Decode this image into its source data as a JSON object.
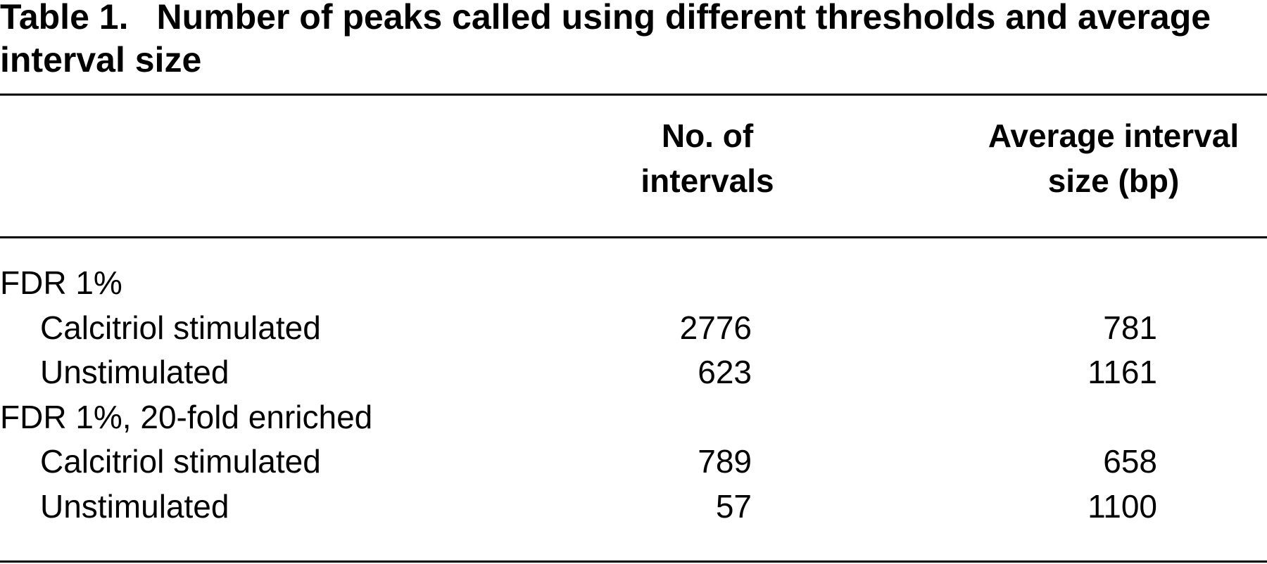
{
  "title": {
    "label": "Table 1.",
    "text": "Number of peaks called using different thresholds and average interval size"
  },
  "table": {
    "columns": [
      "No. of intervals",
      "Average interval size (bp)"
    ],
    "groups": [
      {
        "label": "FDR 1%",
        "rows": [
          {
            "label": "Calcitriol stimulated",
            "values": [
              2776,
              781
            ]
          },
          {
            "label": "Unstimulated",
            "values": [
              623,
              1161
            ]
          }
        ]
      },
      {
        "label": "FDR 1%, 20-fold enriched",
        "rows": [
          {
            "label": "Calcitriol stimulated",
            "values": [
              789,
              658
            ]
          },
          {
            "label": "Unstimulated",
            "values": [
              57,
              1100
            ]
          }
        ]
      }
    ]
  }
}
